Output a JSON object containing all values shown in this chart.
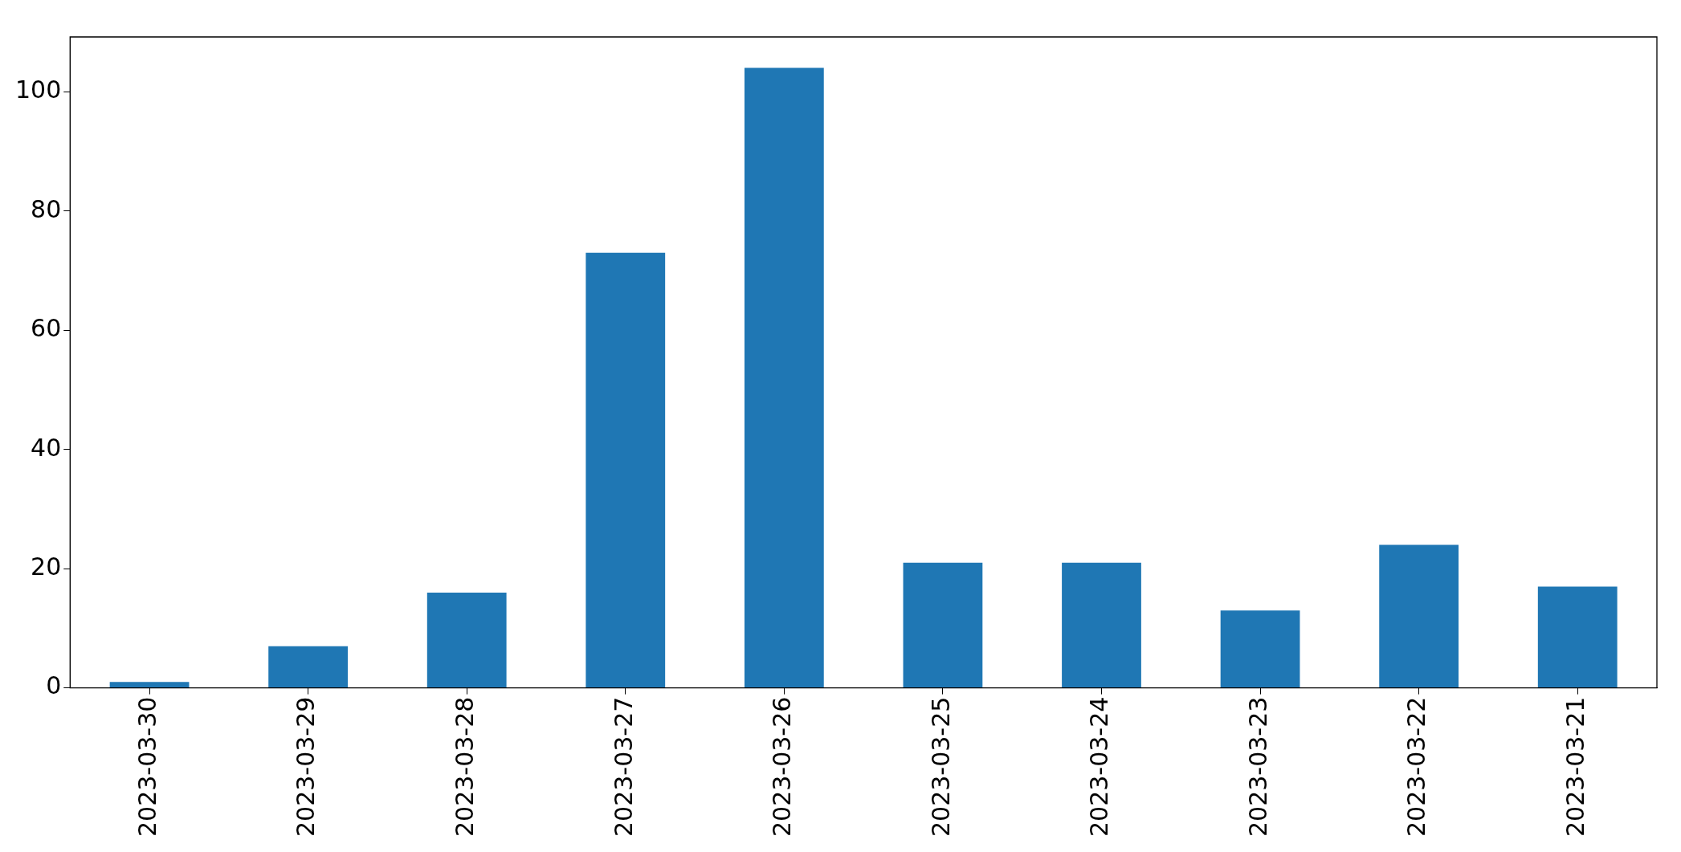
{
  "chart_data": {
    "type": "bar",
    "categories": [
      "2023-03-30",
      "2023-03-29",
      "2023-03-28",
      "2023-03-27",
      "2023-03-26",
      "2023-03-25",
      "2023-03-24",
      "2023-03-23",
      "2023-03-22",
      "2023-03-21"
    ],
    "values": [
      1,
      7,
      16,
      73,
      104,
      21,
      21,
      13,
      24,
      17
    ],
    "color": "#1f77b4",
    "ylim": [
      0,
      109.2
    ],
    "yticks": [
      0,
      20,
      40,
      60,
      80,
      100
    ],
    "grid": false,
    "legend": false
  }
}
